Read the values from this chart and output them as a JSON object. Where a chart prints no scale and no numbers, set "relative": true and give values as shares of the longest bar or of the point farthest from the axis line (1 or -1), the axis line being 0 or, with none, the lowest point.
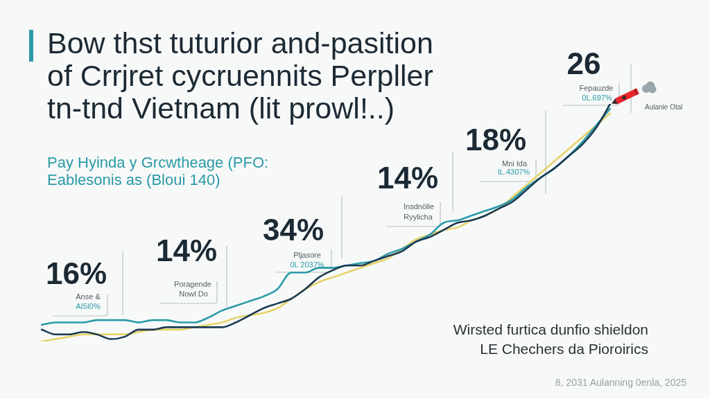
{
  "chart_data": {
    "type": "line",
    "title": "Bow thst tuturior and-pasition of Crrjret cycruennits Perpller tn-tnd Vietnam (lit prowl!..)",
    "subtitle": "Pay Hyinda y Grcwtheage (PFO: Eablesonis as (Bloui 140)",
    "categories": [
      null,
      null,
      null,
      null,
      null,
      null,
      null,
      null,
      null,
      null,
      null,
      null,
      null,
      null,
      null,
      null,
      null,
      null,
      null,
      null,
      null,
      null,
      null,
      null,
      null,
      null,
      null,
      null,
      null,
      null,
      null,
      null,
      null,
      null,
      null,
      null,
      null,
      null,
      null,
      null,
      null,
      null
    ],
    "relative": true,
    "series": [
      {
        "color": "#1c3a52",
        "values": [
          0.05,
          0.03,
          0.03,
          0.04,
          0.03,
          0.01,
          0.02,
          0.05,
          0.05,
          0.06,
          0.06,
          0.06,
          0.06,
          0.06,
          0.08,
          0.11,
          0.14,
          0.16,
          0.18,
          0.22,
          0.27,
          0.3,
          0.32,
          0.32,
          0.34,
          0.36,
          0.38,
          0.42,
          0.44,
          0.47,
          0.5,
          0.51,
          0.53,
          0.56,
          0.59,
          0.64,
          0.69,
          0.73,
          0.78,
          0.83,
          0.9,
          1.0
        ]
      },
      {
        "color": "#2a9aa8",
        "values": [
          0.07,
          0.08,
          0.08,
          0.08,
          0.09,
          0.09,
          0.09,
          0.08,
          0.09,
          0.09,
          0.08,
          0.08,
          0.1,
          0.13,
          0.15,
          0.17,
          0.19,
          0.22,
          0.29,
          0.29,
          0.31,
          0.31,
          0.32,
          0.33,
          0.34,
          0.37,
          0.39,
          0.42,
          0.45,
          0.5,
          0.51,
          0.53,
          0.55,
          0.57,
          0.6,
          0.65,
          0.69,
          0.73,
          0.78,
          0.84,
          0.91,
          0.98
        ]
      },
      {
        "color": "#e6d36a",
        "values": [
          0,
          0.01,
          0.02,
          0.03,
          0.03,
          0.03,
          0.03,
          0.04,
          0.05,
          0.05,
          0.05,
          0.06,
          0.07,
          0.08,
          0.1,
          0.11,
          0.12,
          0.14,
          0.18,
          0.22,
          0.25,
          0.27,
          0.29,
          0.31,
          0.33,
          0.35,
          0.39,
          0.43,
          0.45,
          0.47,
          0.48,
          0.51,
          0.53,
          0.56,
          0.61,
          0.66,
          0.71,
          0.76,
          0.81,
          0.86,
          0.91,
          0.96
        ]
      }
    ],
    "annotations": [
      "16%",
      "Anse &",
      "AI5I0%",
      "14%",
      "Poragende",
      "Nowl Do",
      "34%",
      "Pljasore",
      "0L 2037%",
      "14%",
      "Insdnölle",
      "Ryylicha",
      "18%",
      "Mni Ida",
      "IL.4307%",
      "26",
      "Fepauzde",
      "0L.697%",
      "Aulanie Otal",
      "Wirsted furtica dunfio shieldon",
      "LE Chechers da Pioroirics",
      "8, 2031 Aulanning 0enla, 2025"
    ]
  }
}
